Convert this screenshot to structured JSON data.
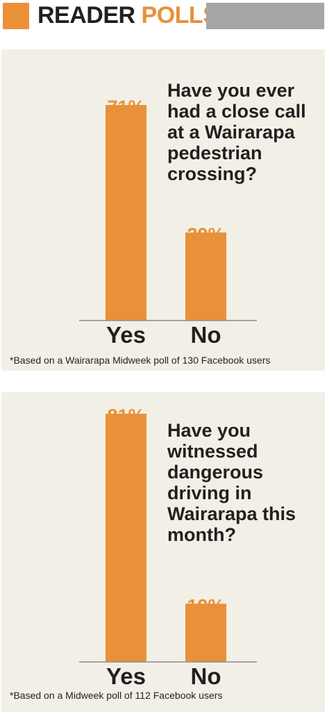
{
  "header": {
    "title_word1": "READER",
    "title_word2": "POLLS",
    "accent_color": "#e8913a",
    "gray_bar_color": "#a6a6a6"
  },
  "polls": [
    {
      "question": "Have you ever had a close call at a Wairarapa pedestrian crossing?",
      "footnote": "*Based on a Wairarapa Midweek poll of 130 Facebook users"
    },
    {
      "question": "Have you witnessed dangerous driving in Wairarapa this month?",
      "footnote": "*Based on a Midweek poll of 112 Facebook users"
    }
  ],
  "chart_data": [
    {
      "type": "bar",
      "categories": [
        "Yes",
        "No"
      ],
      "values": [
        71,
        29
      ],
      "value_labels": [
        "71%",
        "29%"
      ],
      "title": "Have you ever had a close call at a Wairarapa pedestrian crossing?",
      "ylim": [
        0,
        100
      ],
      "bar_color": "#e8913a",
      "grid": false
    },
    {
      "type": "bar",
      "categories": [
        "Yes",
        "No"
      ],
      "values": [
        81,
        19
      ],
      "value_labels": [
        "81%",
        "19%"
      ],
      "title": "Have you witnessed dangerous driving in Wairarapa this month?",
      "ylim": [
        0,
        100
      ],
      "bar_color": "#e8913a",
      "grid": false
    }
  ]
}
